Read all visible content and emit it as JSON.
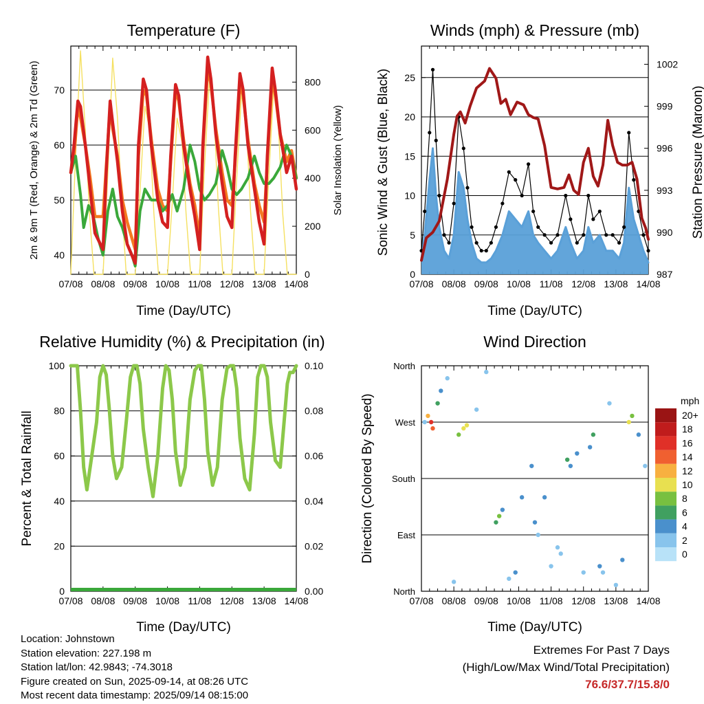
{
  "x_ticks": [
    "07/08",
    "08/08",
    "09/08",
    "10/08",
    "11/08",
    "12/08",
    "13/08",
    "14/08"
  ],
  "x_label": "Time (Day/UTC)",
  "colors": {
    "temp_2m": "#d42020",
    "temp_9m": "#f47a20",
    "dewpoint": "#3aa83a",
    "solar": "#f5e060",
    "wind": "#5aa0d8",
    "gust": "#000000",
    "pressure": "#a01818",
    "rh": "#8cc84a",
    "precip": "#3aa83a"
  },
  "chart_data": [
    {
      "type": "line",
      "title": "Temperature (F)",
      "ylabel": "2m & 9m T (Red, Orange) & 2m Td (Green)",
      "ylabel_right": "Solar Insolation (Yellow)",
      "ylim": [
        36.5,
        78
      ],
      "yticks": [
        40,
        50,
        60,
        70
      ],
      "ylim_right": [
        0,
        950
      ],
      "yticks_right": [
        0,
        200,
        400,
        600,
        800
      ],
      "grid": true,
      "series": [
        {
          "key": "temp_2m",
          "axis": "left",
          "x": [
            0,
            0.1,
            0.22,
            0.3,
            0.45,
            0.6,
            0.75,
            1.0,
            1.1,
            1.22,
            1.3,
            1.45,
            1.6,
            1.75,
            2.0,
            2.1,
            2.25,
            2.35,
            2.5,
            2.7,
            2.85,
            3.0,
            3.1,
            3.25,
            3.35,
            3.5,
            3.7,
            3.85,
            4.0,
            4.1,
            4.25,
            4.35,
            4.5,
            4.7,
            4.85,
            5.0,
            5.1,
            5.25,
            5.35,
            5.5,
            5.7,
            5.85,
            6.0,
            6.1,
            6.25,
            6.35,
            6.5,
            6.7,
            6.85,
            7.0
          ],
          "y": [
            55,
            60,
            68,
            67,
            60,
            52,
            44,
            41,
            55,
            68,
            64,
            57,
            48,
            42,
            38.5,
            60,
            72,
            70,
            60,
            50,
            46,
            45,
            58,
            71,
            69,
            60,
            52,
            47,
            41,
            60,
            76,
            72,
            62,
            53,
            47,
            45,
            58,
            73,
            70,
            60,
            52,
            46,
            42,
            58,
            74,
            70,
            62,
            55,
            58,
            52
          ]
        },
        {
          "key": "temp_9m",
          "axis": "left",
          "x": [
            0,
            0.1,
            0.22,
            0.3,
            0.45,
            0.6,
            0.75,
            1.0,
            1.1,
            1.22,
            1.3,
            1.45,
            1.6,
            1.75,
            2.0,
            2.1,
            2.25,
            2.35,
            2.5,
            2.7,
            2.85,
            3.0,
            3.1,
            3.25,
            3.35,
            3.5,
            3.7,
            3.85,
            4.0,
            4.1,
            4.25,
            4.35,
            4.5,
            4.7,
            4.85,
            5.0,
            5.1,
            5.25,
            5.35,
            5.5,
            5.7,
            5.85,
            6.0,
            6.1,
            6.25,
            6.35,
            6.5,
            6.7,
            6.85,
            7.0
          ],
          "y": [
            55,
            58,
            67,
            65,
            60,
            54,
            47,
            47,
            56,
            67,
            63,
            58,
            50,
            46,
            41,
            58,
            70,
            69,
            61,
            52,
            49,
            48,
            57,
            70,
            68,
            61,
            53,
            49,
            43,
            59,
            74,
            71,
            63,
            55,
            50,
            49,
            57,
            71,
            69,
            61,
            53,
            49,
            46,
            57,
            72,
            69,
            62,
            57,
            59,
            54
          ]
        },
        {
          "key": "dewpoint",
          "axis": "left",
          "x": [
            0,
            0.15,
            0.3,
            0.4,
            0.55,
            0.7,
            0.85,
            1.0,
            1.15,
            1.3,
            1.45,
            1.6,
            1.75,
            1.9,
            2.0,
            2.15,
            2.3,
            2.5,
            2.7,
            2.85,
            3.0,
            3.15,
            3.3,
            3.5,
            3.7,
            3.85,
            4.0,
            4.15,
            4.3,
            4.5,
            4.7,
            4.85,
            5.0,
            5.15,
            5.3,
            5.5,
            5.7,
            5.85,
            6.0,
            6.15,
            6.3,
            6.5,
            6.7,
            6.85,
            7.0
          ],
          "y": [
            55,
            58,
            51,
            45,
            49,
            47,
            43,
            40,
            48,
            52,
            47,
            45,
            42,
            40,
            38,
            48,
            52,
            50,
            50,
            48,
            49,
            51,
            48,
            52,
            60,
            57,
            52,
            50,
            51,
            53,
            59,
            56,
            52,
            51,
            52,
            54,
            58,
            55,
            53,
            53,
            54,
            56,
            60,
            58,
            54
          ]
        },
        {
          "key": "solar",
          "axis": "right",
          "x": [
            0,
            0.15,
            0.3,
            0.45,
            0.58,
            0.72,
            0.9,
            1.0,
            1.15,
            1.3,
            1.45,
            1.58,
            1.72,
            1.9,
            2.0,
            2.15,
            2.3,
            2.45,
            2.58,
            2.72,
            2.9,
            3.0,
            3.15,
            3.3,
            3.45,
            3.58,
            3.72,
            3.9,
            4.0,
            4.15,
            4.3,
            4.45,
            4.58,
            4.72,
            4.9,
            5.0,
            5.15,
            5.3,
            5.45,
            5.58,
            5.72,
            5.9,
            6.0,
            6.15,
            6.3,
            6.45,
            6.58,
            6.72,
            6.9,
            7.0
          ],
          "y": [
            0,
            500,
            930,
            600,
            250,
            0,
            0,
            0,
            420,
            900,
            650,
            300,
            0,
            0,
            0,
            350,
            700,
            600,
            250,
            0,
            0,
            0,
            300,
            650,
            550,
            250,
            0,
            0,
            0,
            450,
            800,
            650,
            280,
            0,
            0,
            0,
            400,
            750,
            620,
            260,
            0,
            0,
            0,
            420,
            780,
            600,
            250,
            0,
            0,
            0
          ]
        }
      ]
    },
    {
      "type": "line",
      "title": "Winds (mph) & Pressure (mb)",
      "ylabel": "Sonic Wind & Gust (Blue, Black)",
      "ylabel_right": "Station Pressure (Maroon)",
      "ylim": [
        0,
        29
      ],
      "yticks": [
        0,
        5,
        10,
        15,
        20,
        25
      ],
      "ylim_right": [
        987,
        1003.3
      ],
      "yticks_right": [
        987,
        990,
        993,
        996,
        999,
        1002
      ],
      "grid": true,
      "series": [
        {
          "key": "pressure",
          "axis": "right",
          "x": [
            0,
            0.15,
            0.35,
            0.55,
            0.8,
            1.0,
            1.1,
            1.2,
            1.35,
            1.5,
            1.7,
            1.95,
            2.1,
            2.3,
            2.45,
            2.6,
            2.75,
            2.95,
            3.15,
            3.3,
            3.45,
            3.6,
            3.8,
            4.0,
            4.2,
            4.4,
            4.55,
            4.7,
            4.85,
            5.0,
            5.15,
            5.3,
            5.45,
            5.6,
            5.75,
            5.9,
            6.05,
            6.2,
            6.35,
            6.5,
            6.65,
            6.8,
            6.92,
            7.0
          ],
          "y": [
            988,
            989.6,
            990.0,
            990.8,
            993.8,
            997.0,
            998.3,
            998.6,
            997.8,
            999.0,
            1000.3,
            1000.8,
            1001.7,
            1001.0,
            999.2,
            999.5,
            998.4,
            999.3,
            999.1,
            998.4,
            998.2,
            998.1,
            996.2,
            993.2,
            993.1,
            993.2,
            994.1,
            993.0,
            992.7,
            995.0,
            996.0,
            994.0,
            993.3,
            994.8,
            998.0,
            996.2,
            995.0,
            994.8,
            994.8,
            995.0,
            993.8,
            991.0,
            990.3,
            989.5
          ]
        },
        {
          "key": "gust",
          "axis": "left",
          "x": [
            0,
            0.1,
            0.25,
            0.35,
            0.45,
            0.55,
            0.7,
            0.85,
            1.0,
            1.15,
            1.3,
            1.42,
            1.55,
            1.7,
            1.85,
            2.0,
            2.15,
            2.3,
            2.5,
            2.7,
            2.9,
            3.1,
            3.3,
            3.45,
            3.6,
            3.8,
            4.0,
            4.2,
            4.45,
            4.6,
            4.8,
            5.0,
            5.15,
            5.3,
            5.5,
            5.7,
            5.9,
            6.1,
            6.25,
            6.4,
            6.55,
            6.7,
            6.85,
            7.0
          ],
          "y": [
            3,
            8,
            18,
            26,
            17,
            10,
            5,
            4,
            9,
            20,
            16,
            11,
            6,
            4,
            3,
            3,
            4,
            6,
            9,
            13,
            12,
            10,
            14,
            8,
            6,
            5,
            4,
            5,
            10,
            7,
            4,
            5,
            10,
            7,
            8,
            5,
            5,
            4,
            6,
            18,
            12,
            8,
            5,
            3
          ]
        },
        {
          "key": "wind",
          "axis": "left",
          "x": [
            0,
            0.1,
            0.25,
            0.35,
            0.45,
            0.55,
            0.7,
            0.85,
            1.0,
            1.15,
            1.3,
            1.42,
            1.55,
            1.7,
            1.85,
            2.0,
            2.15,
            2.3,
            2.5,
            2.7,
            2.9,
            3.1,
            3.3,
            3.45,
            3.6,
            3.8,
            4.0,
            4.2,
            4.45,
            4.6,
            4.8,
            5.0,
            5.15,
            5.3,
            5.5,
            5.7,
            5.9,
            6.1,
            6.25,
            6.4,
            6.55,
            6.7,
            6.85,
            7.0
          ],
          "y": [
            2,
            5,
            12,
            16,
            10,
            6,
            3,
            2,
            5,
            13,
            11,
            7,
            4,
            2,
            1.5,
            1.5,
            2,
            3,
            5,
            8,
            7,
            6,
            8,
            5,
            4,
            3,
            2,
            3,
            6,
            4,
            2,
            3,
            6,
            4,
            5,
            3,
            3,
            2,
            4,
            11,
            7,
            5,
            3,
            1.5
          ]
        }
      ]
    },
    {
      "type": "line",
      "title": "Relative Humidity (%) & Precipitation (in)",
      "ylabel": "Percent & Total Rainfall",
      "ylim": [
        0,
        100
      ],
      "yticks": [
        0,
        20,
        40,
        60,
        80,
        100
      ],
      "ylim_right": [
        0,
        0.1
      ],
      "yticks_right": [
        "0.00",
        "0.02",
        "0.04",
        "0.06",
        "0.08",
        "0.10"
      ],
      "grid": true,
      "series": [
        {
          "key": "rh",
          "axis": "left",
          "x": [
            0,
            0.1,
            0.2,
            0.3,
            0.4,
            0.5,
            0.65,
            0.8,
            0.9,
            1.0,
            1.1,
            1.2,
            1.3,
            1.42,
            1.58,
            1.72,
            1.85,
            1.95,
            2.05,
            2.15,
            2.25,
            2.4,
            2.55,
            2.7,
            2.85,
            2.95,
            3.05,
            3.15,
            3.25,
            3.4,
            3.55,
            3.7,
            3.85,
            3.95,
            4.05,
            4.15,
            4.25,
            4.4,
            4.55,
            4.7,
            4.85,
            4.95,
            5.05,
            5.15,
            5.25,
            5.4,
            5.55,
            5.7,
            5.8,
            5.9,
            6.0,
            6.1,
            6.2,
            6.35,
            6.5,
            6.62,
            6.72,
            6.8,
            6.9,
            7.0
          ],
          "y": [
            100,
            100,
            100,
            80,
            55,
            45,
            60,
            75,
            95,
            100,
            96,
            80,
            60,
            50,
            55,
            75,
            95,
            100,
            100,
            92,
            72,
            55,
            42,
            60,
            90,
            100,
            98,
            85,
            62,
            47,
            55,
            85,
            98,
            100,
            100,
            85,
            62,
            47,
            55,
            85,
            99,
            100,
            100,
            90,
            68,
            50,
            45,
            70,
            95,
            100,
            100,
            95,
            75,
            58,
            55,
            75,
            92,
            97,
            97,
            100
          ]
        },
        {
          "key": "precip",
          "axis": "right",
          "x": [
            0,
            7
          ],
          "y": [
            0,
            0
          ]
        }
      ]
    },
    {
      "type": "scatter",
      "title": "Wind Direction",
      "ylabel": "Direction (Colored By Speed)",
      "yticks": [
        "North",
        "East",
        "South",
        "West",
        "North"
      ],
      "ylim": [
        0,
        360
      ],
      "grid": true,
      "legend": {
        "title": "mph",
        "labels": [
          "20+",
          "18",
          "16",
          "14",
          "12",
          "10",
          "8",
          "6",
          "4",
          "2",
          "0"
        ],
        "placement": "right"
      },
      "series": [
        {
          "name": "direction",
          "x": [
            0.1,
            0.2,
            0.3,
            0.35,
            0.5,
            0.6,
            0.8,
            1.0,
            1.15,
            1.3,
            1.4,
            1.7,
            2.0,
            2.3,
            2.4,
            2.5,
            2.7,
            2.9,
            3.1,
            3.4,
            3.5,
            3.6,
            3.8,
            4.0,
            4.2,
            4.3,
            4.5,
            4.6,
            4.8,
            5.0,
            5.2,
            5.3,
            5.5,
            5.6,
            5.8,
            6.0,
            6.2,
            6.4,
            6.5,
            6.7,
            6.9
          ],
          "y": [
            270,
            280,
            270,
            260,
            300,
            320,
            340,
            15,
            250,
            260,
            265,
            290,
            350,
            110,
            120,
            130,
            20,
            30,
            150,
            200,
            110,
            90,
            150,
            40,
            70,
            60,
            210,
            200,
            220,
            30,
            230,
            250,
            40,
            30,
            300,
            10,
            50,
            270,
            280,
            250,
            200
          ],
          "speed": [
            2,
            12,
            16,
            14,
            6,
            3,
            2,
            1,
            8,
            10,
            9,
            2,
            1,
            6,
            8,
            4,
            2,
            3,
            4,
            3,
            4,
            2,
            3,
            2,
            1,
            2,
            5,
            4,
            3,
            2,
            4,
            6,
            3,
            2,
            2,
            1,
            3,
            10,
            8,
            3,
            2
          ]
        }
      ]
    }
  ],
  "info": {
    "location": "Location: Johnstown",
    "elevation": "Station elevation: 227.198 m",
    "latlon": "Station lat/lon: 42.9843; -74.3018",
    "created": "Figure created on Sun, 2025-09-14, at 08:26 UTC",
    "recent": "Most recent data timestamp: 2025/09/14 08:15:00"
  },
  "extremes": {
    "title": "Extremes For Past 7 Days",
    "subtitle": "(High/Low/Max Wind/Total Precipitation)",
    "values": "76.6/37.7/15.8/0"
  },
  "speed_colors": [
    "#b8e2f8",
    "#88c4ec",
    "#4a90cc",
    "#40a060",
    "#78c040",
    "#e8e050",
    "#f8b040",
    "#f06030",
    "#e03028",
    "#c01c1c",
    "#9a1414"
  ]
}
